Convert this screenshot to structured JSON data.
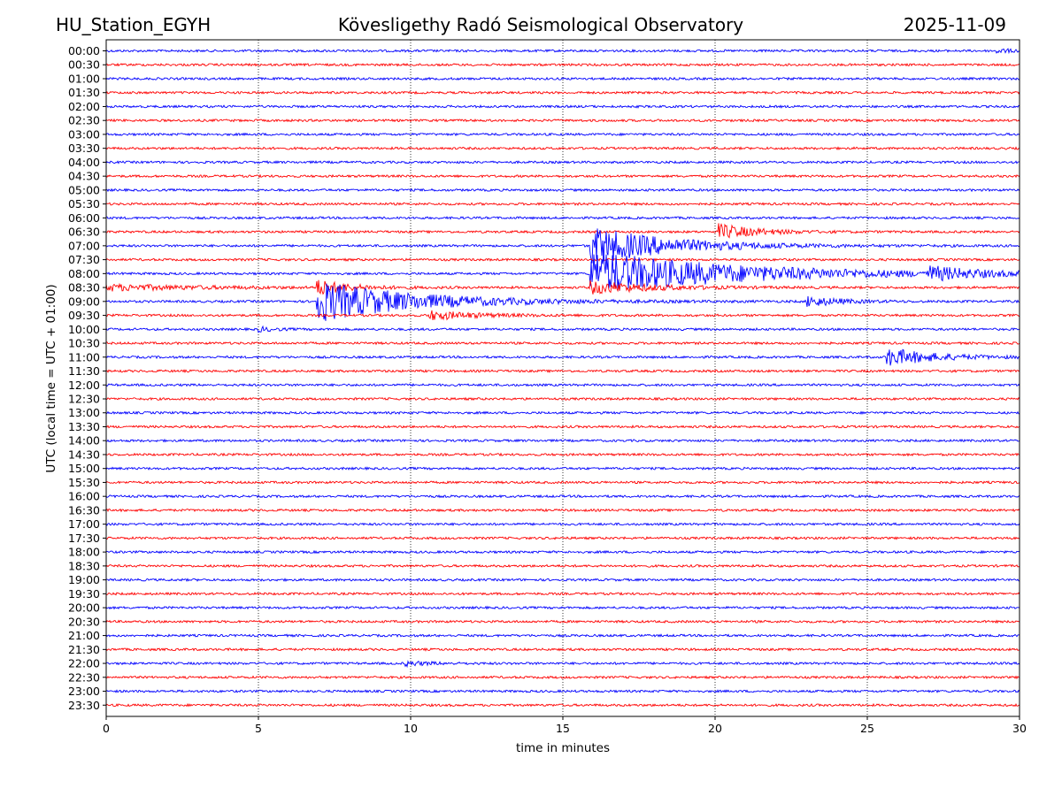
{
  "chart_data": {
    "type": "line",
    "header": {
      "station": "HU_Station_EGYH",
      "title": "Kövesligethy Radó Seismological Observatory",
      "date": "2025-11-09"
    },
    "xlabel": "time in minutes",
    "ylabel": "UTC (local time = UTC + 01:00)",
    "xlim": [
      0,
      30
    ],
    "x_ticks": [
      "0",
      "5",
      "10",
      "15",
      "20",
      "25",
      "30"
    ],
    "x_tick_values": [
      0,
      5,
      10,
      15,
      20,
      25,
      30
    ],
    "vertical_grid": "dotted",
    "trace_colors": [
      "#0000ff",
      "#ff0000"
    ],
    "rows": [
      "00:00",
      "00:30",
      "01:00",
      "01:30",
      "02:00",
      "02:30",
      "03:00",
      "03:30",
      "04:00",
      "04:30",
      "05:00",
      "05:30",
      "06:00",
      "06:30",
      "07:00",
      "07:30",
      "08:00",
      "08:30",
      "09:00",
      "09:30",
      "10:00",
      "10:30",
      "11:00",
      "11:30",
      "12:00",
      "12:30",
      "13:00",
      "13:30",
      "14:00",
      "14:30",
      "15:00",
      "15:30",
      "16:00",
      "16:30",
      "17:00",
      "17:30",
      "18:00",
      "18:30",
      "19:00",
      "19:30",
      "20:00",
      "20:30",
      "21:00",
      "21:30",
      "22:00",
      "22:30",
      "23:00",
      "23:30"
    ],
    "noise_amplitude": 0.15,
    "events": [
      {
        "row": "00:00",
        "start_min": 29.2,
        "peak_amplitude": 0.3,
        "decay_min": 0.5
      },
      {
        "row": "06:30",
        "start_min": 20.1,
        "peak_amplitude": 1.0,
        "decay_min": 1.2
      },
      {
        "row": "07:00",
        "start_min": 15.9,
        "peak_amplitude": 2.5,
        "decay_min": 2.5
      },
      {
        "row": "08:00",
        "start_min": 15.9,
        "peak_amplitude": 3.0,
        "decay_min": 4.5
      },
      {
        "row": "08:00",
        "start_min": 27.0,
        "peak_amplitude": 0.8,
        "decay_min": 1.5
      },
      {
        "row": "08:30",
        "start_min": 0.0,
        "peak_amplitude": 0.4,
        "decay_min": 3.0
      },
      {
        "row": "08:30",
        "start_min": 6.9,
        "peak_amplitude": 1.0,
        "decay_min": 1.0
      },
      {
        "row": "08:30",
        "start_min": 15.9,
        "peak_amplitude": 0.8,
        "decay_min": 2.0
      },
      {
        "row": "09:00",
        "start_min": 6.9,
        "peak_amplitude": 2.8,
        "decay_min": 3.0
      },
      {
        "row": "09:00",
        "start_min": 23.0,
        "peak_amplitude": 0.7,
        "decay_min": 1.0
      },
      {
        "row": "09:30",
        "start_min": 10.6,
        "peak_amplitude": 0.6,
        "decay_min": 1.5
      },
      {
        "row": "10:00",
        "start_min": 5.0,
        "peak_amplitude": 0.3,
        "decay_min": 0.5
      },
      {
        "row": "11:00",
        "start_min": 25.6,
        "peak_amplitude": 1.2,
        "decay_min": 1.5
      },
      {
        "row": "22:00",
        "start_min": 9.8,
        "peak_amplitude": 0.3,
        "decay_min": 0.8
      }
    ]
  }
}
